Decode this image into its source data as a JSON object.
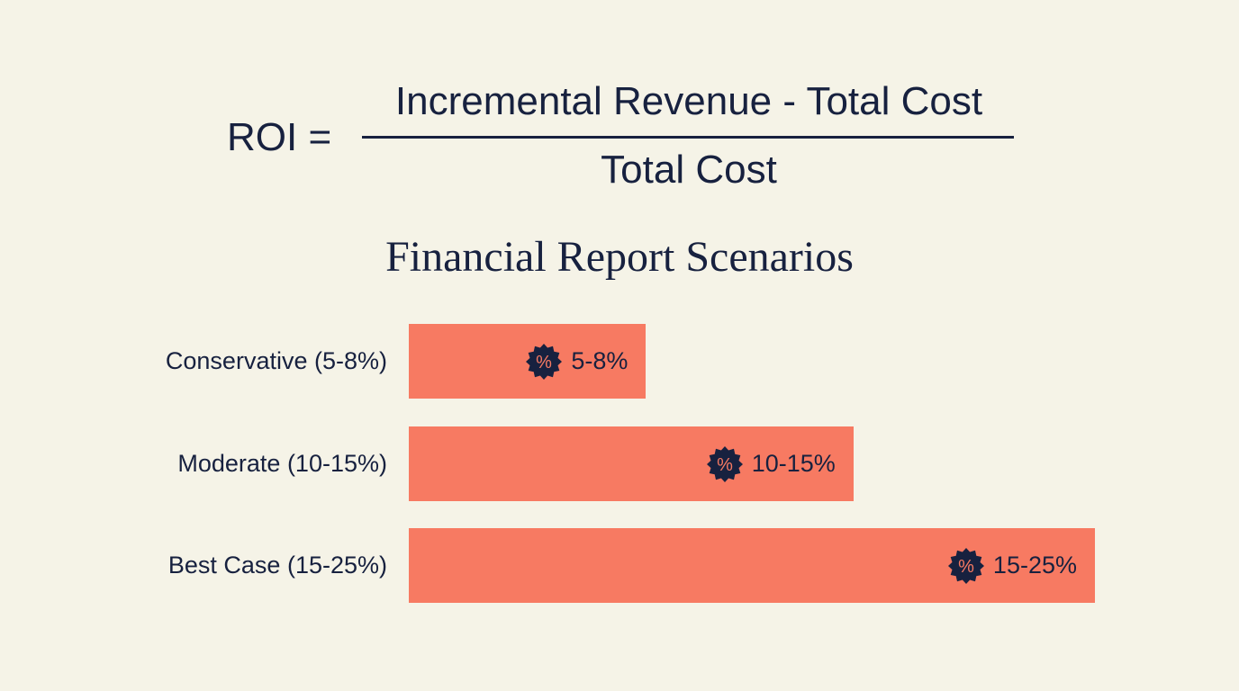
{
  "formula": {
    "lhs": "ROI =",
    "numerator": "Incremental Revenue - Total Cost",
    "denominator": "Total Cost"
  },
  "chart_data": {
    "type": "bar",
    "orientation": "horizontal",
    "title": "Financial Report Scenarios",
    "categories": [
      "Conservative (5-8%)",
      "Moderate (10-15%)",
      "Best Case (15-25%)"
    ],
    "series": [
      {
        "ranges": [
          [
            5,
            8
          ],
          [
            10,
            15
          ],
          [
            15,
            25
          ]
        ],
        "data_labels": [
          "5-8%",
          "10-15%",
          "15-25%"
        ]
      }
    ],
    "unit": "%",
    "grid": false,
    "label_icon": "percent-badge-icon",
    "colors": {
      "bar": "#f77a62",
      "text": "#17213f",
      "background": "#f5f3e7"
    }
  }
}
